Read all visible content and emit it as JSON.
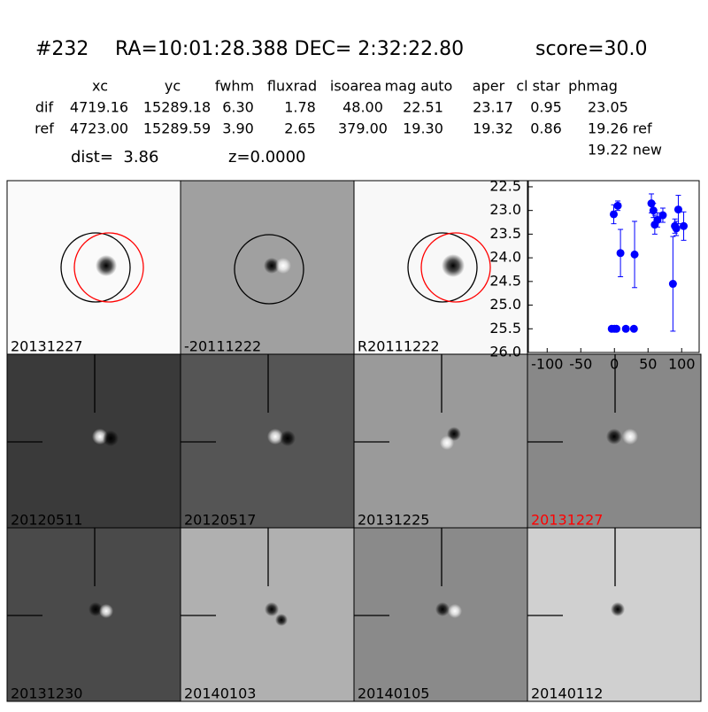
{
  "header": {
    "id": "#232",
    "coords": "RA=10:01:28.388 DEC= 2:32:22.80",
    "score": "score=30.0"
  },
  "table": {
    "columns": [
      "xc",
      "yc",
      "fwhm",
      "fluxrad",
      "isoarea",
      "mag auto",
      "aper",
      "cl star",
      "phmag"
    ],
    "rows": [
      [
        "dif",
        "4719.16",
        "15289.18",
        "6.30",
        "1.78",
        "48.00",
        "22.51",
        "23.17",
        "0.95",
        "23.05"
      ],
      [
        "ref",
        "4723.00",
        "15289.59",
        "3.90",
        "2.65",
        "379.00",
        "19.30",
        "19.32",
        "0.86",
        "19.26 ref"
      ]
    ],
    "extra": "19.22 new"
  },
  "dist": "dist=  3.86",
  "z": "z=0.0000",
  "panels": [
    "20131227",
    "-20111222",
    "R20111222",
    "20120511",
    "20120517",
    "20131225",
    "20131227",
    "20131230",
    "20140103",
    "20140105",
    "20140112"
  ],
  "chart_data": {
    "type": "scatter",
    "xlim": [
      -128,
      126
    ],
    "ylim": [
      26.0,
      22.37
    ],
    "xticks": [
      -100,
      -50,
      0,
      50,
      100
    ],
    "yticks": [
      22.5,
      {
        "value": 23.0,
        "label": "23.0"
      },
      23.5,
      {
        "value": 24.0,
        "label": "24.0"
      },
      24.5,
      {
        "value": 25.0,
        "label": "25.0"
      },
      25.5,
      {
        "value": 26.0,
        "label": "26.0"
      }
    ],
    "series": [
      {
        "color": "#0000ff",
        "x": [
          -1,
          5,
          9,
          30,
          55,
          58,
          60,
          64,
          72,
          87,
          90,
          92,
          95,
          103,
          -4,
          0,
          3,
          17,
          29
        ],
        "values": [
          23.08,
          22.9,
          23.9,
          23.93,
          22.85,
          23.0,
          23.3,
          23.2,
          23.1,
          24.55,
          23.33,
          23.38,
          22.98,
          23.33,
          25.5,
          25.5,
          25.5,
          25.5,
          25.5
        ],
        "errors": [
          0.2,
          0.1,
          0.5,
          0.7,
          0.2,
          0.15,
          0.2,
          0.15,
          0.15,
          1.0,
          0.15,
          0.15,
          0.3,
          0.3,
          0.05,
          0.05,
          0.05,
          0.05,
          0.05
        ]
      }
    ]
  }
}
